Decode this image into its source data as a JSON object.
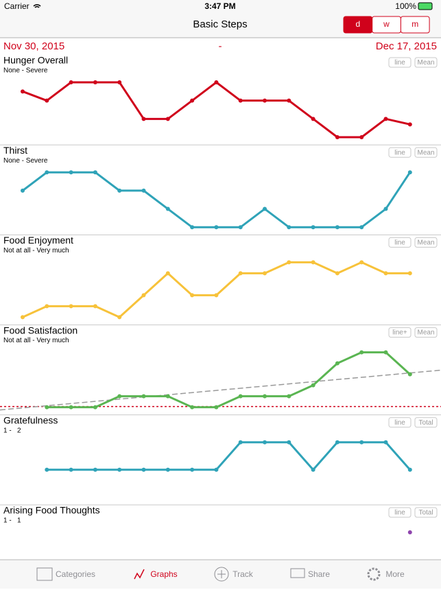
{
  "status": {
    "carrier": "Carrier",
    "time": "3:47 PM",
    "battery": "100%"
  },
  "nav": {
    "title": "Basic Steps",
    "segments": [
      "d",
      "w",
      "m"
    ]
  },
  "range": {
    "start": "Nov 30, 2015",
    "separator": "-",
    "end": "Dec 17, 2015"
  },
  "panels": [
    {
      "title": "Hunger Overall",
      "subtitle": "None - Severe",
      "buttons": [
        "line",
        "Mean"
      ],
      "color": "#d0021b",
      "ylim": [
        1,
        7
      ],
      "values": [
        6,
        5,
        7,
        7,
        7,
        3,
        3,
        5,
        7,
        5,
        5,
        5,
        3,
        1,
        1,
        3,
        2.4
      ]
    },
    {
      "title": "Thirst",
      "subtitle": "None - Severe",
      "buttons": [
        "line",
        "Mean"
      ],
      "color": "#2fa3b8",
      "ylim": [
        1,
        7
      ],
      "values": [
        5,
        7,
        7,
        7,
        5,
        5,
        3,
        1,
        1,
        1,
        3,
        1,
        1,
        1,
        1,
        3,
        7
      ]
    },
    {
      "title": "Food Enjoyment",
      "subtitle": "Not at all - Very much",
      "buttons": [
        "line",
        "Mean"
      ],
      "color": "#f7c23a",
      "ylim": [
        1,
        6
      ],
      "values": [
        1,
        2,
        2,
        2,
        1,
        3,
        5,
        3,
        3,
        5,
        5,
        6,
        6,
        5,
        6,
        5,
        5
      ]
    },
    {
      "title": "Food Satisfaction",
      "subtitle": "Not at all - Very much",
      "buttons": [
        "line+",
        "Mean"
      ],
      "color": "#5ab552",
      "ylim": [
        1,
        6
      ],
      "values": [
        null,
        1,
        1,
        1,
        2,
        2,
        2,
        1,
        1,
        2,
        2,
        2,
        3,
        5,
        6,
        6,
        4
      ]
    },
    {
      "title": "Gratefulness",
      "subtitle": "1 -   2",
      "buttons": [
        "line",
        "Total"
      ],
      "color": "#2fa3b8",
      "ylim": [
        0,
        2
      ],
      "values": [
        null,
        1,
        1,
        1,
        1,
        1,
        1,
        1,
        1,
        2,
        2,
        2,
        1,
        2,
        2,
        2,
        1
      ]
    },
    {
      "title": "Arising Food Thoughts",
      "subtitle": "1 -   1",
      "buttons": [
        "line",
        "Total"
      ],
      "color": "#8e44ad",
      "ylim": [
        0,
        1
      ],
      "values": [
        null,
        null,
        null,
        null,
        null,
        null,
        null,
        null,
        null,
        null,
        null,
        null,
        null,
        null,
        null,
        null,
        1
      ]
    }
  ],
  "tabs": [
    "Categories",
    "Graphs",
    "Track",
    "Share",
    "More"
  ]
}
